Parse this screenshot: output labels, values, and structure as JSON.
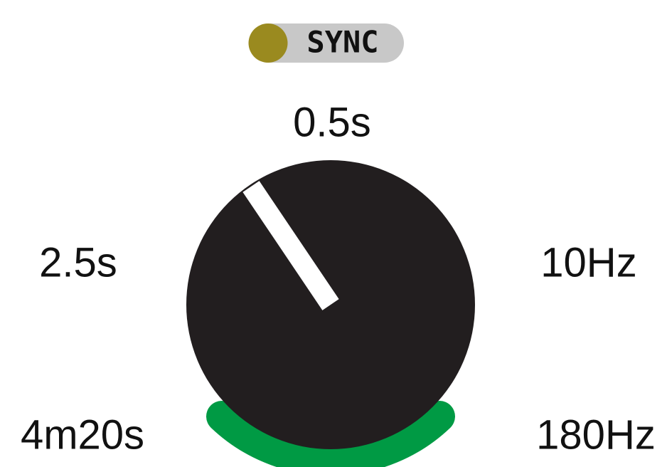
{
  "sync": {
    "label": "SYNC"
  },
  "knob": {
    "labels": {
      "top": "0.5s",
      "left": "2.5s",
      "right": "10Hz",
      "bottom_left": "4m20s",
      "bottom_right": "180Hz"
    }
  }
}
